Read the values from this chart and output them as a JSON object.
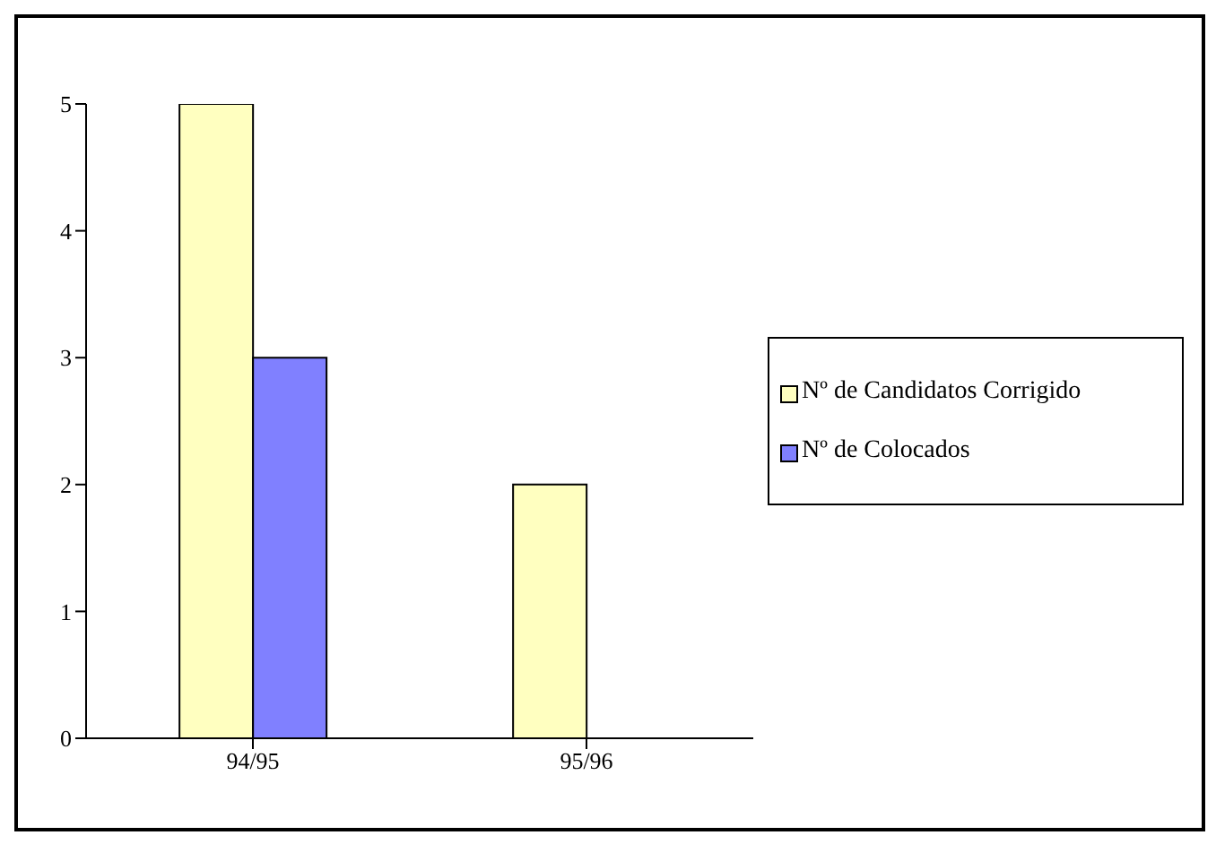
{
  "chart_data": {
    "type": "bar",
    "categories": [
      "94/95",
      "95/96"
    ],
    "series": [
      {
        "name": "Nº de Candidatos Corrigido",
        "color": "#ffffc0",
        "values": [
          5,
          2
        ]
      },
      {
        "name": "Nº de Colocados",
        "color": "#8080ff",
        "values": [
          3,
          0
        ]
      }
    ],
    "ylim": [
      0,
      5
    ],
    "yticks": [
      0,
      1,
      2,
      3,
      4,
      5
    ],
    "grid": false,
    "legend": "right"
  }
}
